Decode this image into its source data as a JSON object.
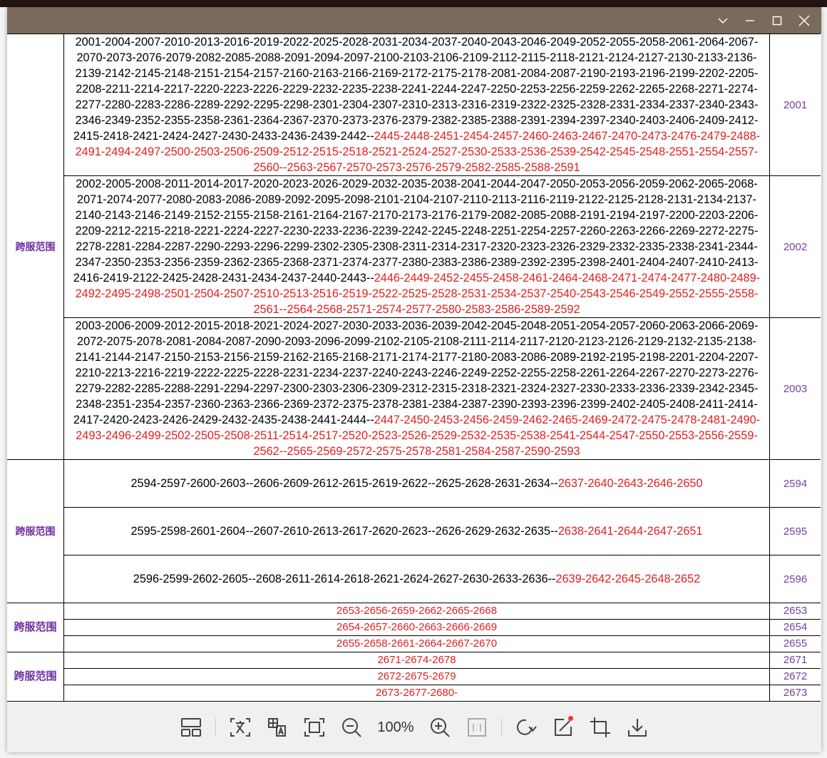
{
  "window": {
    "controls": [
      "chevron-down",
      "minimize",
      "maximize",
      "close"
    ]
  },
  "colors": {
    "titlebar": "#7a6a5c",
    "red_text": "#e0201f",
    "label": "#7030a0",
    "id": "#7a3e9d"
  },
  "groups": [
    {
      "label": "跨服范围",
      "rows": [
        {
          "black": "2001-2004-2007-2010-2013-2016-2019-2022-2025-2028-2031-2034-2037-2040-2043-2046-2049-2052-2055-2058-2061-2064-2067-2070-2073-2076-2079-2082-2085-2088-2091-2094-2097-2100-2103-2106-2109-2112-2115-2118-2121-2124-2127-2130-2133-2136-2139-2142-2145-2148-2151-2154-2157-2160-2163-2166-2169-2172-2175-2178-2081-2084-2087-2190-2193-2196-2199-2202-2205-2208-2211-2214-2217-2220-2223-2226-2229-2232-2235-2238-2241-2244-2247-2250-2253-2256-2259-2262-2265-2268-2271-2274-2277-2280-2283-2286-2289-2292-2295-2298-2301-2304-2307-2310-2313-2316-2319-2322-2325-2328-2331-2334-2337-2340-2343-2346-2349-2352-2355-2358-2361-2364-2367-2370-2373-2376-2379-2382-2385-2388-2391-2394-2397-2340-2403-2406-2409-2412-2415-2418-2421-2424-2427-2430-2433-2436-2439-2442--",
          "red": "2445-2448-2451-2454-2457-2460-2463-2467-2470-2473-2476-2479-2488-2491-2494-2497-2500-2503-2506-2509-2512-2515-2518-2521-2524-2527-2530-2533-2536-2539-2542-2545-2548-2551-2554-2557-2560--2563-2567-2570-2573-2576-2579-2582-2585-2588-2591",
          "id": "2001"
        },
        {
          "black": "2002-2005-2008-2011-2014-2017-2020-2023-2026-2029-2032-2035-2038-2041-2044-2047-2050-2053-2056-2059-2062-2065-2068-2071-2074-2077-2080-2083-2086-2089-2092-2095-2098-2101-2104-2107-2110-2113-2116-2119-2122-2125-2128-2131-2134-2137-2140-2143-2146-2149-2152-2155-2158-2161-2164-2167-2170-2173-2176-2179-2082-2085-2088-2191-2194-2197-2200-2203-2206-2209-2212-2215-2218-2221-2224-2227-2230-2233-2236-2239-2242-2245-2248-2251-2254-2257-2260-2263-2266-2269-2272-2275-2278-2281-2284-2287-2290-2293-2296-2299-2302-2305-2308-2311-2314-2317-2320-2323-2326-2329-2332-2335-2338-2341-2344-2347-2350-2353-2356-2359-2362-2365-2368-2371-2374-2377-2380-2383-2386-2389-2392-2395-2398-2401-2404-2407-2410-2413-2416-2419-2122-2425-2428-2431-2434-2437-2440-2443--",
          "red": "2446-2449-2452-2455-2458-2461-2464-2468-2471-2474-2477-2480-2489-2492-2495-2498-2501-2504-2507-2510-2513-2516-2519-2522-2525-2528-2531-2534-2537-2540-2543-2546-2549-2552-2555-2558-2561--2564-2568-2571-2574-2577-2580-2583-2586-2589-2592",
          "id": "2002"
        },
        {
          "black": "2003-2006-2009-2012-2015-2018-2021-2024-2027-2030-2033-2036-2039-2042-2045-2048-2051-2054-2057-2060-2063-2066-2069-2072-2075-2078-2081-2084-2087-2090-2093-2096-2099-2102-2105-2108-2111-2114-2117-2120-2123-2126-2129-2132-2135-2138-2141-2144-2147-2150-2153-2156-2159-2162-2165-2168-2171-2174-2177-2180-2083-2086-2089-2192-2195-2198-2201-2204-2207-2210-2213-2216-2219-2222-2225-2228-2231-2234-2237-2240-2243-2246-2249-2252-2255-2258-2261-2264-2267-2270-2273-2276-2279-2282-2285-2288-2291-2294-2297-2300-2303-2306-2309-2312-2315-2318-2321-2324-2327-2330-2333-2336-2339-2342-2345-2348-2351-2354-2357-2360-2363-2366-2369-2372-2375-2378-2381-2384-2387-2390-2393-2396-2399-2402-2405-2408-2411-2414-2417-2420-2423-2426-2429-2432-2435-2438-2441-2444--",
          "red": "2447-2450-2453-2456-2459-2462-2465-2469-2472-2475-2478-2481-2490-2493-2496-2499-2502-2505-2508-2511-2514-2517-2520-2523-2526-2529-2532-2535-2538-2541-2544-2547-2550-2553-2556-2559-2562--2565-2569-2572-2575-2578-2581-2584-2587-2590-2593",
          "id": "2003"
        }
      ]
    },
    {
      "label": "跨服范围",
      "rows": [
        {
          "black": "2594-2597-2600-2603--2606-2609-2612-2615-2619-2622--2625-2628-2631-2634--",
          "red": "2637-2640-2643-2646-2650",
          "id": "2594"
        },
        {
          "black": "2595-2598-2601-2604--2607-2610-2613-2617-2620-2623--2626-2629-2632-2635--",
          "red": "2638-2641-2644-2647-2651",
          "id": "2595"
        },
        {
          "black": "2596-2599-2602-2605--2608-2611-2614-2618-2621-2624-2627-2630-2633-2636--",
          "red": "2639-2642-2645-2648-2652",
          "id": "2596"
        }
      ]
    },
    {
      "label": "跨服范围",
      "rows": [
        {
          "black": "",
          "red": "2653-2656-2659-2662-2665-2668",
          "id": "2653"
        },
        {
          "black": "",
          "red": "2654-2657-2660-2663-2666-2669",
          "id": "2654"
        },
        {
          "black": "",
          "red": "2655-2658-2661-2664-2667-2670",
          "id": "2655"
        }
      ]
    },
    {
      "label": "跨服范围",
      "rows": [
        {
          "black": "",
          "red": "2671-2674-2678",
          "id": "2671"
        },
        {
          "black": "",
          "red": "2672-2675-2679",
          "id": "2672"
        },
        {
          "black": "",
          "red": "2673-2677-2680-",
          "id": "2673"
        }
      ]
    }
  ],
  "toolbar": {
    "zoom_level": "100%",
    "tools": [
      "layout",
      "ocr-text",
      "translate",
      "fit-screen",
      "zoom-out",
      "zoom-in",
      "actual-size",
      "rotate",
      "edit",
      "crop",
      "download"
    ]
  }
}
